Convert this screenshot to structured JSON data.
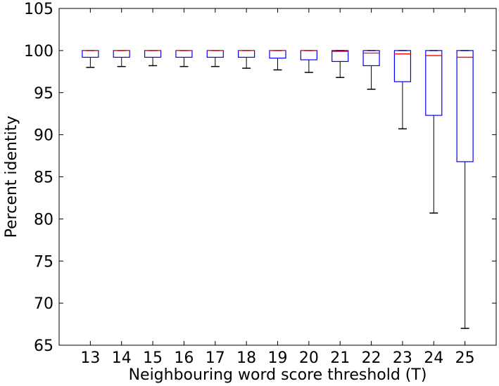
{
  "chart_data": {
    "type": "box",
    "title": "",
    "xlabel": "Neighbouring word score threshold (T)",
    "ylabel": "Percent identity",
    "ylim": [
      65,
      105
    ],
    "yticks": [
      65,
      70,
      75,
      80,
      85,
      90,
      95,
      100,
      105
    ],
    "categories": [
      "13",
      "14",
      "15",
      "16",
      "17",
      "18",
      "19",
      "20",
      "21",
      "22",
      "23",
      "24",
      "25"
    ],
    "boxes": [
      {
        "label": "13",
        "whisker_low": 98.0,
        "q1": 99.2,
        "median": 100,
        "q3": 100,
        "whisker_high": 100
      },
      {
        "label": "14",
        "whisker_low": 98.1,
        "q1": 99.2,
        "median": 100,
        "q3": 100,
        "whisker_high": 100
      },
      {
        "label": "15",
        "whisker_low": 98.2,
        "q1": 99.2,
        "median": 100,
        "q3": 100,
        "whisker_high": 100
      },
      {
        "label": "16",
        "whisker_low": 98.1,
        "q1": 99.2,
        "median": 100,
        "q3": 100,
        "whisker_high": 100
      },
      {
        "label": "17",
        "whisker_low": 98.1,
        "q1": 99.2,
        "median": 100,
        "q3": 100,
        "whisker_high": 100
      },
      {
        "label": "18",
        "whisker_low": 97.9,
        "q1": 99.2,
        "median": 100,
        "q3": 100,
        "whisker_high": 100
      },
      {
        "label": "19",
        "whisker_low": 97.7,
        "q1": 99.1,
        "median": 100,
        "q3": 100,
        "whisker_high": 100
      },
      {
        "label": "20",
        "whisker_low": 97.4,
        "q1": 98.9,
        "median": 100,
        "q3": 100,
        "whisker_high": 100
      },
      {
        "label": "21",
        "whisker_low": 96.8,
        "q1": 98.7,
        "median": 99.9,
        "q3": 100,
        "whisker_high": 100
      },
      {
        "label": "22",
        "whisker_low": 95.4,
        "q1": 98.2,
        "median": 99.7,
        "q3": 100,
        "whisker_high": 100
      },
      {
        "label": "23",
        "whisker_low": 90.7,
        "q1": 96.3,
        "median": 99.6,
        "q3": 100,
        "whisker_high": 100
      },
      {
        "label": "24",
        "whisker_low": 80.7,
        "q1": 92.3,
        "median": 99.4,
        "q3": 100,
        "whisker_high": 100
      },
      {
        "label": "25",
        "whisker_low": 67.0,
        "q1": 86.8,
        "median": 99.2,
        "q3": 100,
        "whisker_high": 100
      }
    ],
    "colors": {
      "box": "#0000ff",
      "median": "#ff0000",
      "whisker": "#000000",
      "axis": "#000000"
    },
    "grid": false,
    "legend": "none"
  }
}
